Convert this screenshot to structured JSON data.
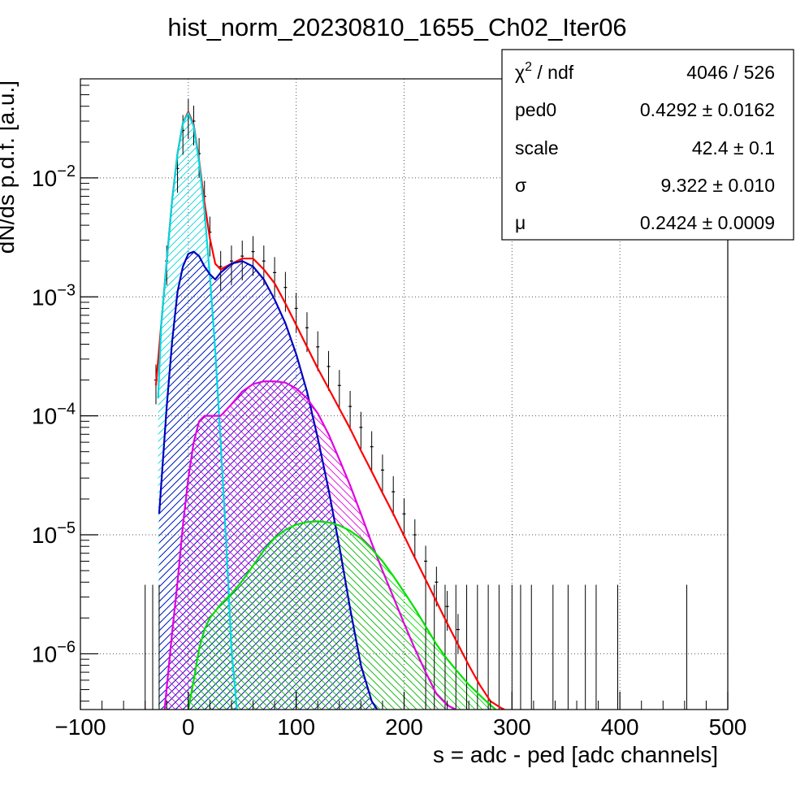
{
  "chart_data": {
    "type": "line",
    "title": "hist_norm_20230810_1655_Ch02_Iter06",
    "xlabel": "s = adc - ped [adc channels]",
    "ylabel": "dN/ds p.d.f. [a.u.]",
    "xlim": [
      -100,
      500
    ],
    "ylim": [
      3.4e-07,
      0.068
    ],
    "yscale": "log",
    "grid": true,
    "x_ticks": [
      -100,
      0,
      100,
      200,
      300,
      400,
      500
    ],
    "x_tick_labels": [
      "−100",
      "0",
      "100",
      "200",
      "300",
      "400",
      "500"
    ],
    "y_ticks": [
      1e-06,
      1e-05,
      0.0001,
      0.001,
      0.01
    ],
    "y_tick_labels": [
      {
        "base": "10",
        "exp": "−6"
      },
      {
        "base": "10",
        "exp": "−5"
      },
      {
        "base": "10",
        "exp": "−4"
      },
      {
        "base": "10",
        "exp": "−3"
      },
      {
        "base": "10",
        "exp": "−2"
      }
    ],
    "stats_box": {
      "position": "top-right",
      "rows": [
        {
          "name_base": "χ",
          "name_sup": "2",
          "name_rest": " / ndf",
          "value": "4046 / 526"
        },
        {
          "name_base": "ped0",
          "name_sup": "",
          "name_rest": "",
          "value": "0.4292 ± 0.0162"
        },
        {
          "name_base": "scale",
          "name_sup": "",
          "name_rest": "",
          "value": "42.4 ± 0.1"
        },
        {
          "name_base": "σ",
          "name_sup": "",
          "name_rest": "",
          "value": "9.322 ± 0.010"
        },
        {
          "name_base": "μ",
          "name_sup": "",
          "name_rest": "",
          "value": "0.2424 ± 0.0009"
        }
      ]
    },
    "data_points": {
      "color": "#000000",
      "x": [
        -30,
        -20,
        -10,
        -5,
        0,
        5,
        10,
        15,
        20,
        30,
        40,
        50,
        60,
        70,
        80,
        90,
        100,
        110,
        120,
        130,
        140,
        150,
        160,
        170,
        180,
        190,
        200,
        210,
        220,
        230,
        240,
        250
      ],
      "y": [
        0.0002,
        0.002,
        0.012,
        0.025,
        0.034,
        0.03,
        0.016,
        0.007,
        0.0035,
        0.0018,
        0.002,
        0.0022,
        0.0024,
        0.002,
        0.0016,
        0.0012,
        0.0008,
        0.00055,
        0.00038,
        0.00026,
        0.00018,
        0.00012,
        8e-05,
        5.5e-05,
        3.5e-05,
        2.3e-05,
        1.5e-05,
        1e-05,
        6e-06,
        4e-06,
        2.5e-06,
        1.6e-06
      ],
      "sparse_x": [
        -40,
        -33,
        -27,
        220,
        228,
        238,
        248,
        258,
        268,
        278,
        288,
        300,
        308,
        318,
        338,
        352,
        368,
        378,
        398,
        462
      ]
    },
    "series": [
      {
        "color": "#ff0000",
        "hatch": "",
        "x": [
          -30,
          -25,
          -20,
          -15,
          -10,
          -5,
          0,
          5,
          10,
          15,
          20,
          25,
          30,
          40,
          50,
          60,
          70,
          80,
          90,
          100,
          110,
          120,
          130,
          140,
          150,
          160,
          170,
          180,
          190,
          200,
          210,
          220,
          230,
          240,
          250,
          260,
          270,
          280,
          290,
          293
        ],
        "y": [
          0.00018,
          0.0006,
          0.002,
          0.0065,
          0.016,
          0.029,
          0.036,
          0.028,
          0.014,
          0.0062,
          0.0031,
          0.0019,
          0.0017,
          0.0019,
          0.0021,
          0.0021,
          0.0017,
          0.0013,
          0.00088,
          0.00058,
          0.00038,
          0.00025,
          0.00017,
          0.000115,
          7.8e-05,
          5.1e-05,
          3.4e-05,
          2.25e-05,
          1.5e-05,
          9.8e-06,
          6.4e-06,
          4.2e-06,
          2.75e-06,
          1.8e-06,
          1.2e-06,
          8e-07,
          5.5e-07,
          4e-07,
          3.5e-07,
          3.4e-07
        ]
      },
      {
        "color": "#00d8e0",
        "hatch": "up",
        "x": [
          -28,
          -25,
          -20,
          -15,
          -10,
          -5,
          0,
          5,
          10,
          15,
          20,
          25,
          30,
          35,
          40,
          45
        ],
        "y": [
          0.00014,
          0.0006,
          0.002,
          0.0064,
          0.016,
          0.029,
          0.035,
          0.027,
          0.0135,
          0.0052,
          0.0015,
          0.00035,
          6e-05,
          9e-06,
          1.1e-06,
          3.4e-07
        ]
      },
      {
        "color": "#0000c0",
        "hatch": "up",
        "x": [
          -27,
          -20,
          -15,
          -10,
          -5,
          0,
          5,
          10,
          15,
          20,
          25,
          30,
          40,
          50,
          60,
          70,
          80,
          90,
          100,
          110,
          120,
          130,
          140,
          150,
          160,
          170,
          175
        ],
        "y": [
          1.5e-05,
          0.00012,
          0.00042,
          0.0011,
          0.0018,
          0.0023,
          0.0024,
          0.0022,
          0.0018,
          0.00155,
          0.0014,
          0.0016,
          0.0019,
          0.002,
          0.0018,
          0.0014,
          0.00095,
          0.0006,
          0.00033,
          0.00016,
          6.5e-05,
          2.4e-05,
          8e-06,
          2.4e-06,
          8e-07,
          4e-07,
          3.4e-07
        ]
      },
      {
        "color": "#e000e0",
        "hatch": "down",
        "x": [
          -22,
          -15,
          -10,
          -5,
          0,
          5,
          10,
          15,
          20,
          30,
          40,
          50,
          60,
          70,
          80,
          90,
          100,
          110,
          120,
          130,
          140,
          150,
          160,
          170,
          180,
          190,
          200,
          210,
          220,
          230,
          240,
          248
        ],
        "y": [
          3.4e-07,
          1.5e-06,
          4e-06,
          1.2e-05,
          3e-05,
          6e-05,
          9e-05,
          0.0001,
          0.0001,
          0.0001,
          0.000125,
          0.00016,
          0.000185,
          0.000195,
          0.000195,
          0.00019,
          0.00017,
          0.00014,
          0.000105,
          7e-05,
          4.3e-05,
          2.6e-05,
          1.5e-05,
          8.5e-06,
          5e-06,
          3e-06,
          1.8e-06,
          1.1e-06,
          7e-07,
          4.6e-07,
          3.7e-07,
          3.4e-07
        ]
      },
      {
        "color": "#00e000",
        "hatch": "down",
        "x": [
          0,
          5,
          10,
          15,
          20,
          30,
          40,
          50,
          60,
          70,
          80,
          90,
          100,
          110,
          120,
          130,
          140,
          150,
          160,
          170,
          180,
          190,
          200,
          210,
          220,
          230,
          240,
          250,
          260,
          270,
          280,
          285
        ],
        "y": [
          3.4e-07,
          6e-07,
          1.1e-06,
          1.6e-06,
          2e-06,
          2.6e-06,
          3.2e-06,
          4.1e-06,
          5.5e-06,
          7.4e-06,
          9.4e-06,
          1.1e-05,
          1.22e-05,
          1.28e-05,
          1.3e-05,
          1.27e-05,
          1.2e-05,
          1.08e-05,
          9.3e-06,
          7.6e-06,
          6e-06,
          4.5e-06,
          3.3e-06,
          2.4e-06,
          1.7e-06,
          1.2e-06,
          9e-07,
          7e-07,
          5.5e-07,
          4.5e-07,
          3.7e-07,
          3.4e-07
        ]
      }
    ]
  }
}
